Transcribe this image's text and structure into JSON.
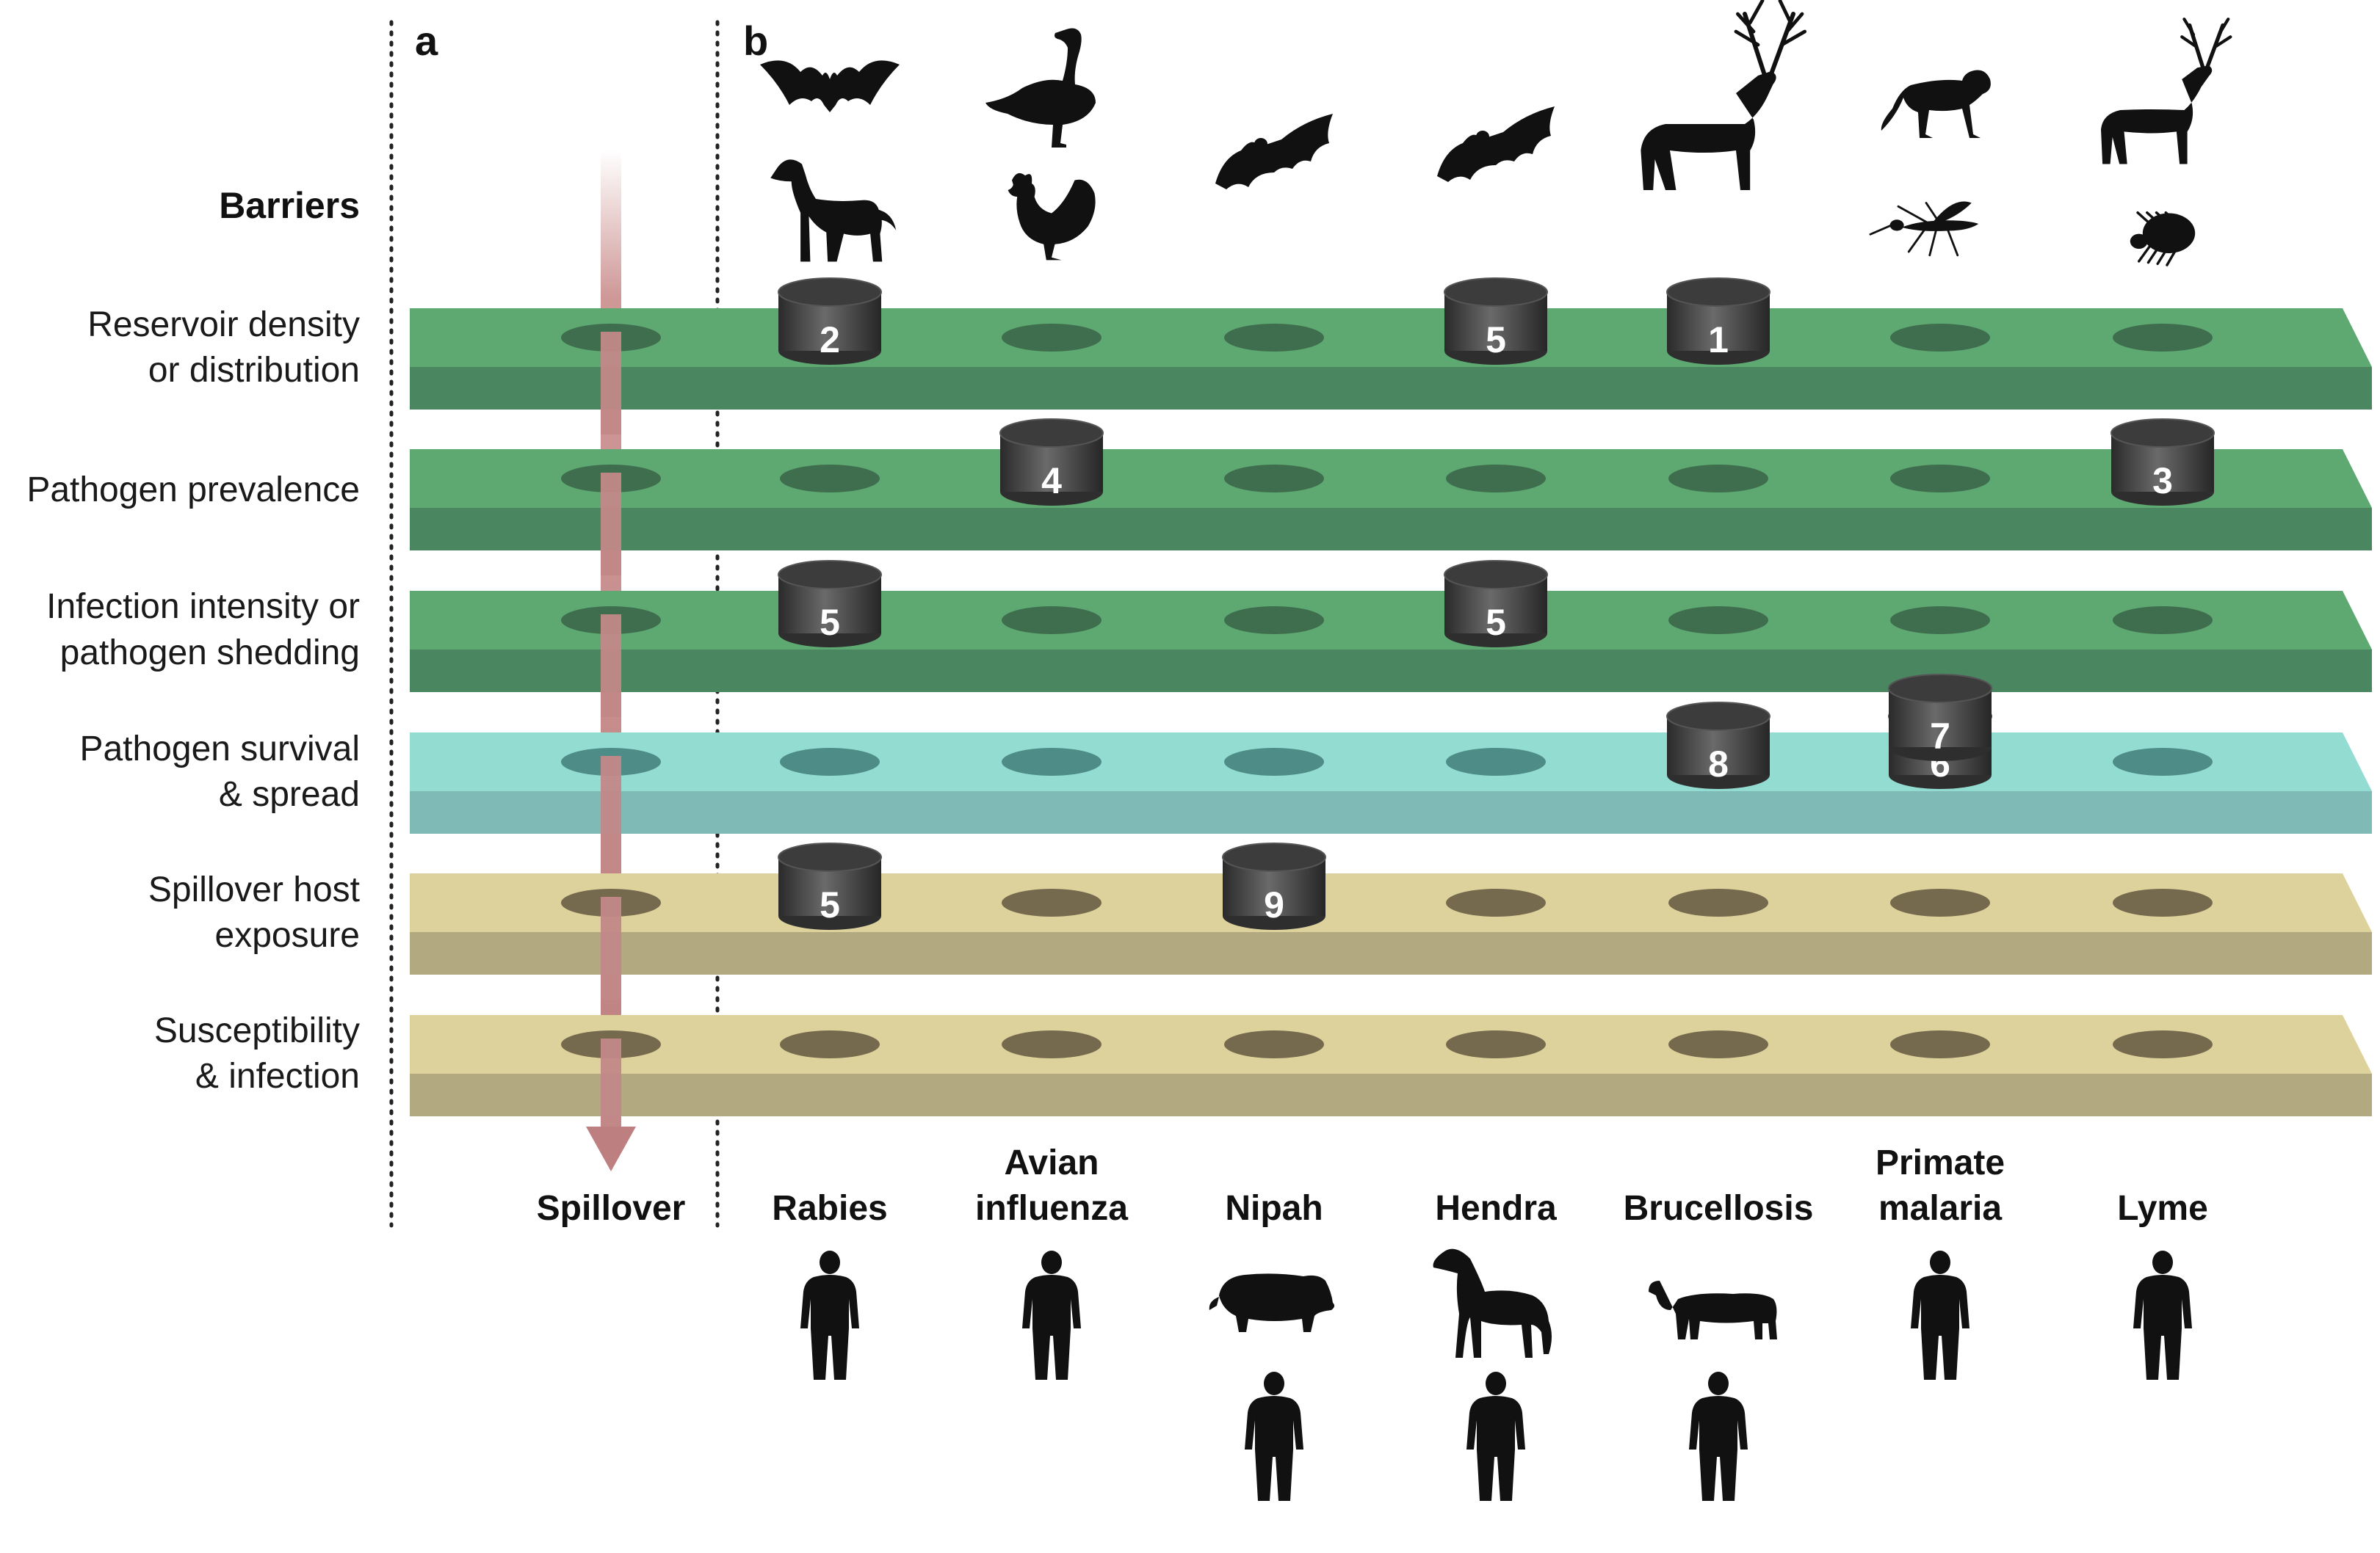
{
  "panels": {
    "a": "a",
    "b": "b"
  },
  "barriers_heading": "Barriers",
  "barriers": [
    {
      "lines": [
        "Reservoir density",
        "or distribution"
      ],
      "kind": "reservoir",
      "top": "#5ea872",
      "side": "#4a8660",
      "hole": "#3f6e4e"
    },
    {
      "lines": [
        "Pathogen prevalence"
      ],
      "kind": "reservoir",
      "top": "#5ea872",
      "side": "#4a8660",
      "hole": "#3f6e4e"
    },
    {
      "lines": [
        "Infection intensity or",
        "pathogen shedding"
      ],
      "kind": "reservoir",
      "top": "#5ea872",
      "side": "#4a8660",
      "hole": "#3f6e4e"
    },
    {
      "lines": [
        "Pathogen survival",
        "& spread"
      ],
      "kind": "environment",
      "top": "#93dcd2",
      "side": "#7fbab6",
      "hole": "#4e8c87"
    },
    {
      "lines": [
        "Spillover host",
        "exposure"
      ],
      "kind": "recipient",
      "top": "#ddd29c",
      "side": "#b3a981",
      "hole": "#756a4e"
    },
    {
      "lines": [
        "Susceptibility",
        "& infection"
      ],
      "kind": "recipient",
      "top": "#ddd29c",
      "side": "#b3a981",
      "hole": "#756a4e"
    }
  ],
  "spillover_label": "Spillover",
  "arrow_color": "#c98d8c",
  "diseases": [
    {
      "lines": [
        "Rabies"
      ],
      "reservoirs": [
        "bat-icon",
        "dog-icon"
      ],
      "recipients": [
        "human-icon"
      ]
    },
    {
      "lines": [
        "Avian",
        "influenza"
      ],
      "reservoirs": [
        "goose-icon",
        "chicken-icon"
      ],
      "recipients": [
        "human-icon"
      ]
    },
    {
      "lines": [
        "Nipah"
      ],
      "reservoirs": [
        "fruit-bat-icon"
      ],
      "recipients": [
        "pig-icon",
        "human-icon"
      ]
    },
    {
      "lines": [
        "Hendra"
      ],
      "reservoirs": [
        "fruit-bat-icon"
      ],
      "recipients": [
        "horse-icon",
        "human-icon"
      ]
    },
    {
      "lines": [
        "Brucellosis"
      ],
      "reservoirs": [
        "elk-icon"
      ],
      "recipients": [
        "cow-icon",
        "human-icon"
      ]
    },
    {
      "lines": [
        "Primate",
        "malaria"
      ],
      "reservoirs": [
        "monkey-icon",
        "mosquito-icon"
      ],
      "recipients": [
        "human-icon"
      ]
    },
    {
      "lines": [
        "Lyme"
      ],
      "reservoirs": [
        "deer-icon",
        "tick-icon"
      ],
      "recipients": [
        "human-icon"
      ]
    }
  ],
  "plugs": [
    {
      "barrier": 0,
      "disease": 0,
      "label": "2"
    },
    {
      "barrier": 0,
      "disease": 3,
      "label": "5"
    },
    {
      "barrier": 0,
      "disease": 4,
      "label": "1"
    },
    {
      "barrier": 1,
      "disease": 1,
      "label": "4"
    },
    {
      "barrier": 1,
      "disease": 6,
      "label": "3"
    },
    {
      "barrier": 2,
      "disease": 0,
      "label": "5"
    },
    {
      "barrier": 2,
      "disease": 3,
      "label": "5"
    },
    {
      "barrier": 3,
      "disease": 4,
      "label": "8"
    },
    {
      "barrier": 3,
      "disease": 5,
      "label": "6",
      "stack": 0
    },
    {
      "barrier": 3,
      "disease": 5,
      "label": "7",
      "stack": 1
    },
    {
      "barrier": 4,
      "disease": 0,
      "label": "5"
    },
    {
      "barrier": 4,
      "disease": 2,
      "label": "9"
    }
  ]
}
